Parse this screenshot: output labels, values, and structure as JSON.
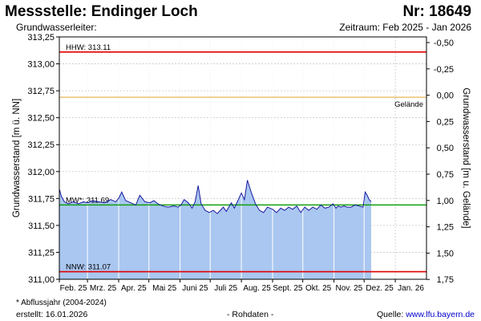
{
  "header": {
    "title": "Messstelle: Endinger Loch",
    "nr": "Nr: 18649",
    "aquifer_label": "Grundwasserleiter:",
    "period": "Zeitraum: Feb 2025 - Jan 2026"
  },
  "footer": {
    "note": "* Abflussjahr (2004-2024)",
    "created": "erstellt:  16.01.2026",
    "raw": "- Rohdaten -",
    "source_prefix": "Quelle: ",
    "source_link": "www.lfu.bayern.de"
  },
  "chart_data": {
    "type": "area",
    "ylabel": "Grundwasserstand [m ü. NN]",
    "ylabel_right": "Grundwasserstand [m u. Gelände]",
    "ylim": [
      311.0,
      313.25
    ],
    "yticks": [
      "313,25",
      "313,00",
      "312,75",
      "312,50",
      "312,25",
      "312,00",
      "311,75",
      "311,50",
      "311,25",
      "311,00"
    ],
    "yticks_right": [
      "-0,50",
      "-0,25",
      "0,00",
      "0,25",
      "0,50",
      "0,75",
      "1,00",
      "1,25",
      "1,50",
      "1,75"
    ],
    "xticks": [
      "Feb. 25",
      "Mrz. 25",
      "Apr. 25",
      "Mai 25",
      "Juni 25",
      "Juli 25",
      "Aug. 25",
      "Sept. 25",
      "Okt. 25",
      "Nov. 25",
      "Dez. 25",
      "Jan. 26"
    ],
    "x_start": "2025-02-01",
    "x_end": "2026-01-31",
    "grid": true,
    "fill_color": "#a9c7f0",
    "line_color": "#1a1aa0",
    "reference_lines": [
      {
        "name": "HHW",
        "label": "HHW: 313.11",
        "value": 313.11,
        "color": "#e00000"
      },
      {
        "name": "Gelände",
        "label": "Gelände",
        "value": 312.69,
        "color": "#e0a030"
      },
      {
        "name": "MW*",
        "label": "MW*: 311.69",
        "value": 311.69,
        "color": "#10a010"
      },
      {
        "name": "NNW",
        "label": "NNW: 311.07",
        "value": 311.07,
        "color": "#e00000"
      }
    ],
    "series": [
      {
        "name": "",
        "x": [
          "2025-02-01",
          "2025-02-03",
          "2025-02-06",
          "2025-02-10",
          "2025-02-15",
          "2025-02-20",
          "2025-02-25",
          "2025-03-01",
          "2025-03-06",
          "2025-03-12",
          "2025-03-18",
          "2025-03-24",
          "2025-03-29",
          "2025-04-01",
          "2025-04-04",
          "2025-04-08",
          "2025-04-13",
          "2025-04-18",
          "2025-04-22",
          "2025-04-27",
          "2025-05-02",
          "2025-05-06",
          "2025-05-10",
          "2025-05-15",
          "2025-05-20",
          "2025-05-26",
          "2025-05-30",
          "2025-06-02",
          "2025-06-05",
          "2025-06-08",
          "2025-06-10",
          "2025-06-13",
          "2025-06-16",
          "2025-06-19",
          "2025-06-22",
          "2025-06-26",
          "2025-06-30",
          "2025-07-04",
          "2025-07-08",
          "2025-07-11",
          "2025-07-14",
          "2025-07-17",
          "2025-07-20",
          "2025-07-22",
          "2025-07-25",
          "2025-07-28",
          "2025-08-01",
          "2025-08-04",
          "2025-08-07",
          "2025-08-11",
          "2025-08-15",
          "2025-08-19",
          "2025-08-23",
          "2025-08-27",
          "2025-09-01",
          "2025-09-05",
          "2025-09-09",
          "2025-09-13",
          "2025-09-17",
          "2025-09-21",
          "2025-09-25",
          "2025-09-29",
          "2025-10-03",
          "2025-10-07",
          "2025-10-11",
          "2025-10-15",
          "2025-10-19",
          "2025-10-23",
          "2025-10-27",
          "2025-10-31",
          "2025-11-03",
          "2025-11-05",
          "2025-11-08",
          "2025-11-11",
          "2025-11-14",
          "2025-11-18",
          "2025-11-22",
          "2025-11-26",
          "2025-11-30",
          "2025-12-02",
          "2025-12-04",
          "2025-12-06",
          "2025-12-08"
        ],
        "values": [
          311.84,
          311.77,
          311.72,
          311.7,
          311.72,
          311.7,
          311.72,
          311.71,
          311.73,
          311.72,
          311.71,
          311.74,
          311.72,
          311.75,
          311.81,
          311.73,
          311.71,
          311.69,
          311.78,
          311.72,
          311.71,
          311.73,
          311.7,
          311.68,
          311.67,
          311.68,
          311.67,
          311.69,
          311.74,
          311.72,
          311.7,
          311.66,
          311.72,
          311.87,
          311.7,
          311.64,
          311.62,
          311.64,
          311.61,
          311.64,
          311.67,
          311.63,
          311.68,
          311.71,
          311.66,
          311.72,
          311.8,
          311.74,
          311.92,
          311.8,
          311.7,
          311.64,
          311.62,
          311.67,
          311.65,
          311.62,
          311.66,
          311.64,
          311.67,
          311.65,
          311.68,
          311.62,
          311.67,
          311.64,
          311.67,
          311.65,
          311.69,
          311.66,
          311.67,
          311.7,
          311.66,
          311.68,
          311.67,
          311.68,
          311.67,
          311.67,
          311.69,
          311.68,
          311.67,
          311.81,
          311.78,
          311.74,
          311.72
        ]
      }
    ]
  }
}
